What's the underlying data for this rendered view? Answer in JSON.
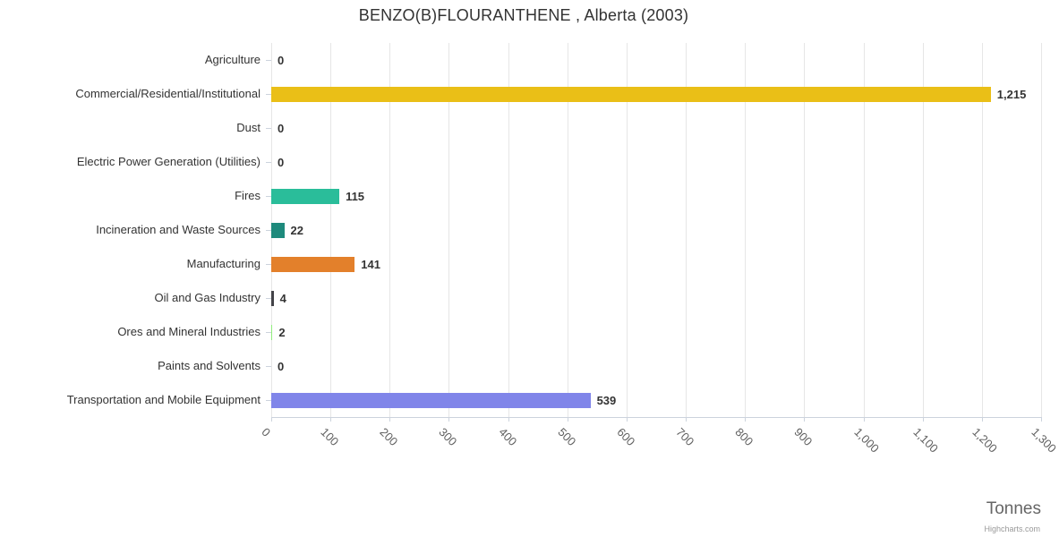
{
  "chart_data": {
    "type": "bar",
    "orientation": "horizontal",
    "title": "BENZO(B)FLOURANTHENE , Alberta (2003)",
    "categories": [
      "Agriculture",
      "Commercial/Residential/Institutional",
      "Dust",
      "Electric Power Generation (Utilities)",
      "Fires",
      "Incineration and Waste Sources",
      "Manufacturing",
      "Oil and Gas Industry",
      "Ores and Mineral Industries",
      "Paints and Solvents",
      "Transportation and Mobile Equipment"
    ],
    "values": [
      0,
      1215,
      0,
      0,
      115,
      22,
      141,
      4,
      2,
      0,
      539
    ],
    "value_labels": [
      "0",
      "1,215",
      "0",
      "0",
      "115",
      "22",
      "141",
      "4",
      "2",
      "0",
      "539"
    ],
    "bar_colors": [
      "#7cb5ec",
      "#eabf17",
      "#f15c80",
      "#f7a35c",
      "#2abd9a",
      "#1e8a7c",
      "#e3802b",
      "#434348",
      "#90ed7d",
      "#e4d354",
      "#8085e9"
    ],
    "xlim": [
      0,
      1300
    ],
    "tick_interval": 100,
    "x_tick_labels": [
      "0",
      "100",
      "200",
      "300",
      "400",
      "500",
      "600",
      "700",
      "800",
      "900",
      "1,000",
      "1,100",
      "1,200",
      "1,300"
    ],
    "xlabel": "Tonnes",
    "grid": true,
    "legend": false
  },
  "credit": "Highcharts.com"
}
